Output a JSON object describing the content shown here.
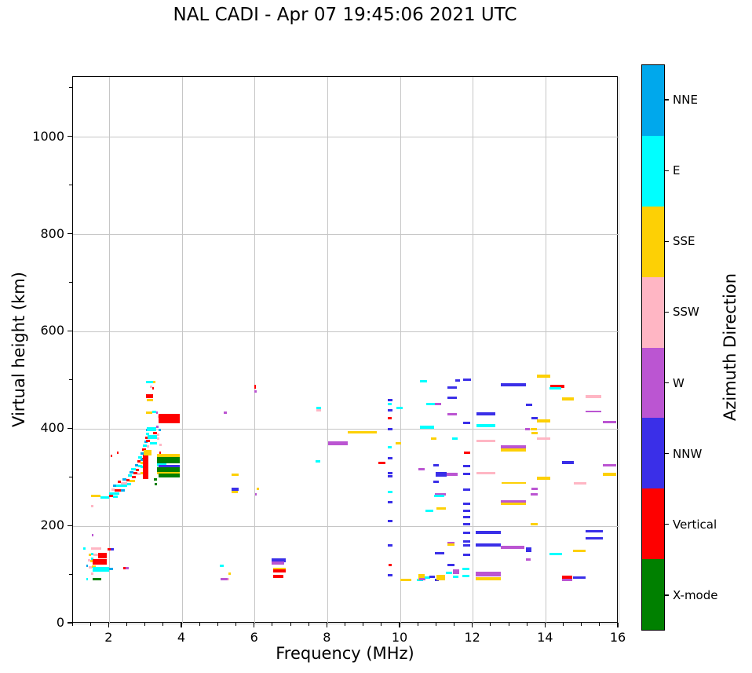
{
  "title": "NAL CADI - Apr 07 19:45:06 2021 UTC",
  "chart_data": {
    "type": "scatter",
    "title": "NAL CADI - Apr 07 19:45:06 2021 UTC",
    "xlabel": "Frequency (MHz)",
    "ylabel": "Virtual height (km)",
    "xlim": [
      1,
      16
    ],
    "ylim": [
      0,
      1124
    ],
    "x_ticks": [
      2,
      4,
      6,
      8,
      10,
      12,
      14,
      16
    ],
    "y_ticks": [
      0,
      200,
      400,
      600,
      800,
      1000
    ],
    "x_minor_step": 0.5,
    "y_minor_step": 100,
    "grid": true,
    "grid_color": "#c6c6c6",
    "colorbar": {
      "label": "Azimuth Direction",
      "categories": [
        {
          "label": "NNE",
          "key": "nne",
          "color": "#00a8ec"
        },
        {
          "label": "E",
          "key": "e",
          "color": "#00ffff"
        },
        {
          "label": "SSE",
          "key": "sse",
          "color": "#fdd005"
        },
        {
          "label": "SSW",
          "key": "ssw",
          "color": "#ffb6c4"
        },
        {
          "label": "W",
          "key": "w",
          "color": "#bb55d2"
        },
        {
          "label": "NNW",
          "key": "nnw",
          "color": "#3a2fe8"
        },
        {
          "label": "Vertical",
          "key": "vert",
          "color": "#fe0000"
        },
        {
          "label": "X-mode",
          "key": "x",
          "color": "#008000"
        }
      ]
    },
    "point_format": [
      "direction_key",
      "freq_start_MHz",
      "freq_end_MHz",
      "height_km",
      "thickness_px_optional"
    ],
    "points": [
      [
        "e",
        1.28,
        1.34,
        155
      ],
      [
        "ssw",
        1.5,
        1.77,
        155
      ],
      [
        "vert",
        1.95,
        2.03,
        153
      ],
      [
        "nnw",
        2.03,
        2.12,
        153
      ],
      [
        "sse",
        1.44,
        1.5,
        141
      ],
      [
        "e",
        1.5,
        1.57,
        143
      ],
      [
        "ssw",
        1.57,
        1.68,
        142
      ],
      [
        "vert",
        1.68,
        1.92,
        139,
        7
      ],
      [
        "ssw",
        1.42,
        1.48,
        130
      ],
      [
        "e",
        1.5,
        1.56,
        133
      ],
      [
        "sse",
        1.48,
        1.55,
        128
      ],
      [
        "vert",
        1.55,
        1.92,
        127,
        7
      ],
      [
        "nne",
        1.36,
        1.42,
        118
      ],
      [
        "ssw",
        1.44,
        1.52,
        116
      ],
      [
        "sse",
        1.52,
        1.62,
        117
      ],
      [
        "e",
        1.55,
        2.0,
        112,
        6
      ],
      [
        "nne",
        2.0,
        2.1,
        113
      ],
      [
        "vert",
        2.38,
        2.45,
        114
      ],
      [
        "w",
        2.45,
        2.53,
        114
      ],
      [
        "e",
        1.36,
        1.41,
        92
      ],
      [
        "x",
        1.55,
        1.78,
        92
      ],
      [
        "ssw",
        1.5,
        1.55,
        103
      ],
      [
        "w",
        1.51,
        1.56,
        181
      ],
      [
        "ssw",
        1.5,
        1.56,
        242
      ],
      [
        "sse",
        1.5,
        1.76,
        263
      ],
      [
        "e",
        1.76,
        2.0,
        259
      ],
      [
        "e",
        2.0,
        2.28,
        268
      ],
      [
        "vert",
        2.0,
        2.1,
        262
      ],
      [
        "e",
        2.1,
        2.22,
        261
      ],
      [
        "ssw",
        2.05,
        2.15,
        276
      ],
      [
        "vert",
        2.15,
        2.32,
        274
      ],
      [
        "nne",
        2.32,
        2.42,
        273
      ],
      [
        "nne",
        2.1,
        2.18,
        284
      ],
      [
        "e",
        2.18,
        2.5,
        283
      ],
      [
        "vert",
        2.22,
        2.32,
        291
      ],
      [
        "ssw",
        2.32,
        2.48,
        289
      ],
      [
        "e",
        2.48,
        2.6,
        287
      ],
      [
        "nne",
        2.36,
        2.46,
        297
      ],
      [
        "vert",
        2.46,
        2.56,
        295
      ],
      [
        "sse",
        2.56,
        2.7,
        293
      ],
      [
        "e",
        2.5,
        2.62,
        304
      ],
      [
        "vert",
        2.62,
        2.72,
        301
      ],
      [
        "nne",
        2.56,
        2.66,
        311
      ],
      [
        "vert",
        2.66,
        2.76,
        309
      ],
      [
        "ssw",
        2.76,
        2.86,
        307
      ],
      [
        "e",
        2.6,
        2.72,
        318
      ],
      [
        "vert",
        2.72,
        2.82,
        316
      ],
      [
        "nne",
        2.7,
        2.8,
        326
      ],
      [
        "e",
        2.8,
        2.9,
        323
      ],
      [
        "vert",
        2.76,
        2.86,
        334
      ],
      [
        "sse",
        2.86,
        2.96,
        331
      ],
      [
        "e",
        2.8,
        2.9,
        342
      ],
      [
        "vert",
        2.9,
        3.0,
        339
      ],
      [
        "nne",
        2.86,
        2.96,
        350
      ],
      [
        "e",
        2.96,
        3.06,
        348
      ],
      [
        "vert",
        2.9,
        3.0,
        358
      ],
      [
        "e",
        2.92,
        3.02,
        366
      ],
      [
        "ssw",
        3.02,
        3.1,
        364
      ],
      [
        "nne",
        2.96,
        3.06,
        374
      ],
      [
        "vert",
        2.98,
        3.08,
        382
      ],
      [
        "e",
        3.0,
        3.1,
        390
      ],
      [
        "nne",
        3.0,
        3.1,
        398
      ],
      [
        "vert",
        2.03,
        2.09,
        345
      ],
      [
        "vert",
        2.2,
        2.26,
        352
      ],
      [
        "vert",
        2.93,
        3.07,
        340,
        9
      ],
      [
        "vert",
        2.93,
        3.07,
        328,
        9
      ],
      [
        "vert",
        2.93,
        3.07,
        314,
        9
      ],
      [
        "vert",
        2.93,
        3.07,
        303,
        7
      ],
      [
        "sse",
        2.95,
        3.15,
        352,
        7
      ],
      [
        "nne",
        2.85,
        2.93,
        336
      ],
      [
        "e",
        2.85,
        2.93,
        322
      ],
      [
        "sse",
        2.85,
        2.93,
        309
      ],
      [
        "x",
        3.22,
        3.3,
        296
      ],
      [
        "x",
        3.24,
        3.3,
        287
      ],
      [
        "e",
        3.0,
        3.2,
        497
      ],
      [
        "sse",
        3.2,
        3.27,
        497
      ],
      [
        "ssw",
        3.12,
        3.18,
        487
      ],
      [
        "vert",
        3.17,
        3.22,
        483
      ],
      [
        "vert",
        3.0,
        3.2,
        467,
        5
      ],
      [
        "sse",
        3.02,
        3.2,
        460
      ],
      [
        "sse",
        3.0,
        3.18,
        434
      ],
      [
        "e",
        3.18,
        3.28,
        436
      ],
      [
        "w",
        3.28,
        3.34,
        433
      ],
      [
        "ssw",
        3.33,
        3.38,
        425
      ],
      [
        "vert",
        3.36,
        3.93,
        421,
        12
      ],
      [
        "w",
        3.28,
        3.35,
        404
      ],
      [
        "e",
        3.02,
        3.28,
        400,
        5
      ],
      [
        "nne",
        3.35,
        3.42,
        398
      ],
      [
        "vert",
        3.2,
        3.3,
        391
      ],
      [
        "ssw",
        3.3,
        3.37,
        389
      ],
      [
        "e",
        3.05,
        3.3,
        383,
        5
      ],
      [
        "ssw",
        3.3,
        3.37,
        381
      ],
      [
        "vert",
        3.0,
        3.12,
        375
      ],
      [
        "e",
        3.12,
        3.3,
        371
      ],
      [
        "ssw",
        3.37,
        3.43,
        368
      ],
      [
        "vert",
        3.37,
        3.42,
        352
      ],
      [
        "vert",
        3.4,
        3.45,
        330
      ],
      [
        "sse",
        3.3,
        3.93,
        345,
        5
      ],
      [
        "x",
        3.3,
        3.93,
        336,
        8
      ],
      [
        "e",
        3.3,
        3.56,
        327,
        4
      ],
      [
        "nnw",
        3.36,
        3.93,
        323,
        3
      ],
      [
        "x",
        3.3,
        3.93,
        317,
        6
      ],
      [
        "sse",
        3.3,
        3.93,
        310,
        3
      ],
      [
        "x",
        3.36,
        3.93,
        305,
        5
      ],
      [
        "w",
        5.15,
        5.23,
        434
      ],
      [
        "vert",
        5.98,
        6.03,
        487,
        5
      ],
      [
        "w",
        5.99,
        6.04,
        477
      ],
      [
        "e",
        7.68,
        7.83,
        444
      ],
      [
        "ssw",
        7.7,
        7.82,
        438
      ],
      [
        "w",
        8.02,
        8.56,
        371,
        5
      ],
      [
        "sse",
        8.55,
        9.35,
        394,
        3
      ],
      [
        "e",
        7.67,
        7.8,
        333
      ],
      [
        "sse",
        5.35,
        5.56,
        306
      ],
      [
        "nnw",
        5.35,
        5.56,
        276,
        4
      ],
      [
        "sse",
        5.35,
        5.53,
        271
      ],
      [
        "sse",
        6.06,
        6.11,
        277
      ],
      [
        "w",
        6.0,
        6.05,
        265
      ],
      [
        "e",
        5.04,
        5.14,
        119
      ],
      [
        "sse",
        5.28,
        5.33,
        102
      ],
      [
        "w",
        5.06,
        5.25,
        91
      ],
      [
        "ssw",
        5.25,
        5.3,
        92
      ],
      [
        "nnw",
        6.46,
        6.84,
        130,
        5
      ],
      [
        "w",
        6.46,
        6.8,
        125,
        4
      ],
      [
        "sse",
        6.5,
        6.85,
        112,
        4
      ],
      [
        "vert",
        6.5,
        6.85,
        108,
        4
      ],
      [
        "vert",
        6.5,
        6.79,
        97,
        4
      ],
      [
        "vert",
        9.4,
        9.58,
        330
      ],
      [
        "nnw",
        9.65,
        9.79,
        460
      ],
      [
        "e",
        9.65,
        9.76,
        452
      ],
      [
        "nnw",
        9.65,
        9.79,
        438
      ],
      [
        "vert",
        9.65,
        9.76,
        422
      ],
      [
        "nnw",
        9.65,
        9.79,
        400
      ],
      [
        "e",
        9.65,
        9.76,
        362
      ],
      [
        "nnw",
        9.65,
        9.79,
        340
      ],
      [
        "nnw",
        9.65,
        9.79,
        310
      ],
      [
        "nnw",
        9.65,
        9.79,
        302
      ],
      [
        "e",
        9.65,
        9.79,
        270
      ],
      [
        "nnw",
        9.65,
        9.79,
        250
      ],
      [
        "nnw",
        9.65,
        9.79,
        211
      ],
      [
        "nnw",
        9.65,
        9.79,
        161
      ],
      [
        "vert",
        9.67,
        9.76,
        121
      ],
      [
        "nnw",
        9.65,
        9.78,
        100
      ],
      [
        "e",
        9.9,
        10.06,
        444
      ],
      [
        "sse",
        9.87,
        10.03,
        370
      ],
      [
        "sse",
        10.0,
        10.3,
        90
      ],
      [
        "e",
        10.55,
        10.73,
        499
      ],
      [
        "e",
        10.72,
        10.95,
        452
      ],
      [
        "w",
        10.95,
        11.12,
        452
      ],
      [
        "e",
        10.55,
        10.92,
        404,
        4
      ],
      [
        "sse",
        10.85,
        11.0,
        380
      ],
      [
        "e",
        11.42,
        11.58,
        380
      ],
      [
        "w",
        10.5,
        10.66,
        317
      ],
      [
        "nnw",
        10.9,
        11.06,
        325
      ],
      [
        "nnw",
        10.97,
        11.28,
        307,
        6
      ],
      [
        "w",
        11.28,
        11.58,
        307,
        4
      ],
      [
        "nnw",
        10.9,
        11.06,
        291
      ],
      [
        "w",
        10.95,
        11.26,
        266,
        3
      ],
      [
        "e",
        10.93,
        11.2,
        262,
        3
      ],
      [
        "e",
        10.7,
        10.9,
        232
      ],
      [
        "sse",
        11.0,
        11.26,
        236
      ],
      [
        "nnw",
        10.95,
        11.2,
        144
      ],
      [
        "w",
        11.3,
        11.5,
        166
      ],
      [
        "sse",
        11.3,
        11.5,
        162
      ],
      [
        "nnw",
        11.3,
        11.5,
        121
      ],
      [
        "nnw",
        11.3,
        11.56,
        485
      ],
      [
        "nnw",
        11.5,
        11.63,
        500
      ],
      [
        "nnw",
        11.3,
        11.56,
        464
      ],
      [
        "w",
        11.3,
        11.56,
        430
      ],
      [
        "e",
        10.45,
        10.62,
        90
      ],
      [
        "sse",
        10.5,
        10.67,
        95,
        8
      ],
      [
        "w",
        10.52,
        10.7,
        91
      ],
      [
        "e",
        10.66,
        10.82,
        95
      ],
      [
        "nnw",
        10.8,
        10.96,
        96
      ],
      [
        "nnw",
        10.95,
        11.06,
        90
      ],
      [
        "sse",
        11.0,
        11.22,
        95,
        7
      ],
      [
        "e",
        11.25,
        11.43,
        104
      ],
      [
        "w",
        11.45,
        11.62,
        106,
        6
      ],
      [
        "e",
        11.45,
        11.6,
        96
      ],
      [
        "vert",
        11.75,
        11.93,
        352
      ],
      [
        "nnw",
        11.72,
        11.95,
        501
      ],
      [
        "nnw",
        11.72,
        11.93,
        412
      ],
      [
        "nnw",
        11.72,
        11.93,
        323
      ],
      [
        "nnw",
        11.72,
        11.93,
        307
      ],
      [
        "nnw",
        11.72,
        11.93,
        276
      ],
      [
        "nnw",
        11.72,
        11.93,
        247
      ],
      [
        "nnw",
        11.72,
        11.93,
        232
      ],
      [
        "nnw",
        11.72,
        11.93,
        219
      ],
      [
        "nnw",
        11.72,
        11.93,
        204
      ],
      [
        "nnw",
        11.72,
        11.93,
        187
      ],
      [
        "nnw",
        11.72,
        11.93,
        169
      ],
      [
        "nnw",
        11.72,
        11.93,
        160
      ],
      [
        "nnw",
        11.72,
        11.93,
        142
      ],
      [
        "e",
        11.7,
        11.9,
        113
      ],
      [
        "e",
        11.7,
        11.9,
        97
      ],
      [
        "nnw",
        12.1,
        12.62,
        431,
        4
      ],
      [
        "e",
        12.1,
        12.62,
        407,
        4
      ],
      [
        "ssw",
        12.1,
        12.62,
        375,
        3
      ],
      [
        "ssw",
        12.1,
        12.62,
        309,
        3
      ],
      [
        "nnw",
        12.08,
        12.76,
        187,
        4
      ],
      [
        "nnw",
        12.08,
        12.76,
        161,
        4
      ],
      [
        "w",
        12.08,
        12.76,
        101,
        6
      ],
      [
        "sse",
        12.08,
        12.76,
        92,
        4
      ],
      [
        "nnw",
        12.76,
        13.46,
        491,
        4
      ],
      [
        "w",
        12.76,
        13.46,
        362,
        5
      ],
      [
        "sse",
        12.76,
        13.46,
        357,
        4
      ],
      [
        "sse",
        12.78,
        13.46,
        289,
        2
      ],
      [
        "w",
        12.76,
        13.46,
        250,
        5
      ],
      [
        "sse",
        12.76,
        13.46,
        246,
        3
      ],
      [
        "w",
        12.76,
        13.4,
        157,
        4
      ],
      [
        "nnw",
        13.46,
        13.62,
        449
      ],
      [
        "nnw",
        13.6,
        13.77,
        422
      ],
      [
        "w",
        13.44,
        13.56,
        400
      ],
      [
        "sse",
        13.58,
        13.75,
        399
      ],
      [
        "sse",
        13.6,
        13.77,
        391
      ],
      [
        "w",
        13.6,
        13.77,
        277
      ],
      [
        "w",
        13.58,
        13.77,
        266
      ],
      [
        "sse",
        13.58,
        13.77,
        204
      ],
      [
        "nnw",
        13.45,
        13.6,
        152,
        6
      ],
      [
        "w",
        13.45,
        13.58,
        131
      ],
      [
        "sse",
        13.76,
        14.12,
        509,
        4
      ],
      [
        "sse",
        13.76,
        14.12,
        417,
        4
      ],
      [
        "ssw",
        13.76,
        14.12,
        381,
        3
      ],
      [
        "sse",
        13.76,
        14.12,
        299,
        4
      ],
      [
        "vert",
        14.12,
        14.52,
        488,
        4
      ],
      [
        "e",
        14.1,
        14.42,
        484,
        3
      ],
      [
        "e",
        14.1,
        14.45,
        143
      ],
      [
        "sse",
        14.45,
        14.77,
        462,
        4
      ],
      [
        "nnw",
        14.45,
        14.77,
        331,
        4
      ],
      [
        "vert",
        14.45,
        14.73,
        95,
        4
      ],
      [
        "nnw",
        14.75,
        15.1,
        95,
        3
      ],
      [
        "w",
        14.45,
        14.72,
        90,
        3
      ],
      [
        "ssw",
        14.76,
        15.12,
        288,
        3
      ],
      [
        "sse",
        14.75,
        15.1,
        149
      ],
      [
        "ssw",
        15.1,
        15.52,
        467,
        4
      ],
      [
        "w",
        15.1,
        15.52,
        436,
        2
      ],
      [
        "nnw",
        15.1,
        15.56,
        190,
        3
      ],
      [
        "nnw",
        15.1,
        15.56,
        176,
        3
      ],
      [
        "w",
        15.56,
        15.93,
        414,
        3
      ],
      [
        "w",
        15.56,
        15.93,
        325,
        3
      ],
      [
        "sse",
        15.56,
        15.93,
        307,
        4
      ]
    ]
  }
}
